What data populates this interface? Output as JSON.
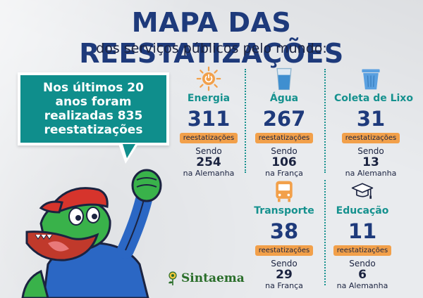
{
  "header": {
    "title": "MAPA DAS REESTATIZAÇÕES",
    "subtitle": "dos serviços públicos pelo mundo:"
  },
  "bubble": {
    "text": "Nos últimos 20 anos foram realizadas 835 reestatizações"
  },
  "sectors": [
    {
      "icon": "lightbulb-icon",
      "category": "Energia",
      "total": "311",
      "badge": "reestatizações",
      "sendo": "Sendo",
      "count": "254",
      "place": "na Alemanha"
    },
    {
      "icon": "water-glass-icon",
      "category": "Água",
      "total": "267",
      "badge": "reestatizações",
      "sendo": "Sendo",
      "count": "106",
      "place": "na França"
    },
    {
      "icon": "trash-bin-icon",
      "category": "Coleta de Lixo",
      "total": "31",
      "badge": "reestatizações",
      "sendo": "Sendo",
      "count": "13",
      "place": "na Alemanha"
    },
    {
      "icon": "bus-icon",
      "category": "Transporte",
      "total": "38",
      "badge": "reestatizações",
      "sendo": "Sendo",
      "count": "29",
      "place": "na França"
    },
    {
      "icon": "graduation-cap-icon",
      "category": "Educação",
      "total": "11",
      "badge": "reestatizações",
      "sendo": "Sendo",
      "count": "6",
      "place": "na Alemanha"
    }
  ],
  "logo": {
    "text": "Sintaema"
  },
  "colors": {
    "navy": "#1e3a7b",
    "teal": "#15918e",
    "orange": "#f2a04a",
    "green": "#2a6e2a"
  }
}
